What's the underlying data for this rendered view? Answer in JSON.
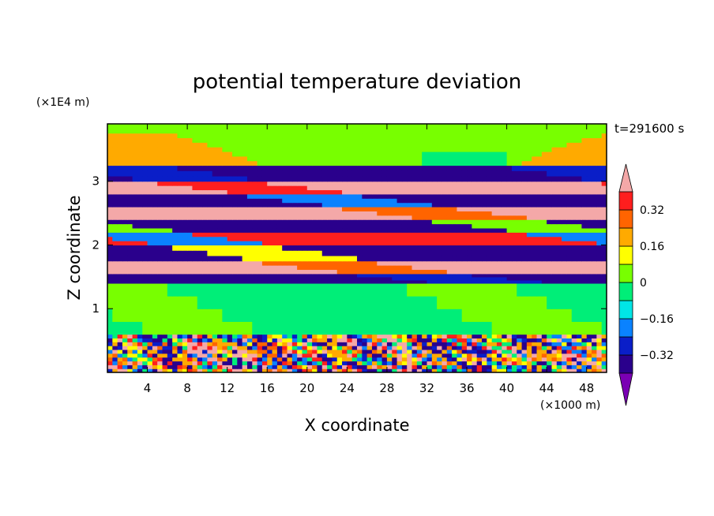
{
  "chart_data": {
    "type": "heatmap",
    "title": "potential temperature deviation",
    "xlabel": "X coordinate",
    "ylabel": "Z coordinate",
    "x_unit": "(×1000 m)",
    "y_unit": "(×1E4 m)",
    "time_label": "t=291600 s",
    "xlim": [
      0,
      50
    ],
    "ylim": [
      0,
      3.9
    ],
    "x_ticks": [
      4,
      8,
      12,
      16,
      20,
      24,
      28,
      32,
      36,
      40,
      44,
      48
    ],
    "y_ticks": [
      1,
      2,
      3
    ],
    "colorbar": {
      "levels": [
        -0.4,
        -0.32,
        -0.24,
        -0.16,
        -0.08,
        0,
        0.08,
        0.16,
        0.24,
        0.32,
        0.4
      ],
      "tick_labels": [
        "0.32",
        "0.16",
        "0",
        "-0.16",
        "-0.32"
      ],
      "tick_values": [
        0.32,
        0.16,
        0,
        -0.16,
        -0.32
      ],
      "colors": [
        "#7a00b4",
        "#2a008c",
        "#0a1ec8",
        "#0a82ff",
        "#00e6e6",
        "#00ee78",
        "#78ff00",
        "#ffff00",
        "#ffaa00",
        "#ff6400",
        "#ff1e1e",
        "#f4a8a8"
      ],
      "extend": "both"
    },
    "bands": [
      {
        "z": [
          0.0,
          0.6
        ],
        "pattern": "turbulent",
        "values": [
          0.4,
          -0.2,
          0.24,
          -0.36,
          0.08,
          0.32,
          -0.3,
          0.16,
          -0.08,
          0.4,
          -0.4,
          0.2
        ]
      },
      {
        "z": [
          0.6,
          1.4
        ],
        "pattern": "smooth",
        "values": [
          -0.04,
          0.04
        ]
      },
      {
        "z": [
          1.4,
          1.55
        ],
        "pattern": "layer",
        "values": [
          -0.4,
          -0.3
        ]
      },
      {
        "z": [
          1.55,
          1.75
        ],
        "pattern": "layer",
        "values": [
          0.4,
          0.3
        ]
      },
      {
        "z": [
          1.75,
          2.0
        ],
        "pattern": "layer",
        "values": [
          -0.36,
          0.08
        ]
      },
      {
        "z": [
          2.0,
          2.2
        ],
        "pattern": "layer",
        "values": [
          0.36,
          -0.2
        ]
      },
      {
        "z": [
          2.2,
          2.4
        ],
        "pattern": "layer",
        "values": [
          -0.4,
          0.0
        ]
      },
      {
        "z": [
          2.4,
          2.6
        ],
        "pattern": "layer",
        "values": [
          0.4,
          0.24
        ]
      },
      {
        "z": [
          2.6,
          2.8
        ],
        "pattern": "layer",
        "values": [
          -0.4,
          -0.2
        ]
      },
      {
        "z": [
          2.8,
          3.0
        ],
        "pattern": "layer",
        "values": [
          0.4,
          0.32
        ]
      },
      {
        "z": [
          3.0,
          3.25
        ],
        "pattern": "layer",
        "values": [
          -0.4,
          -0.3
        ]
      },
      {
        "z": [
          3.25,
          3.9
        ],
        "pattern": "upper",
        "values": [
          0.04,
          0.16,
          -0.04
        ]
      }
    ]
  }
}
